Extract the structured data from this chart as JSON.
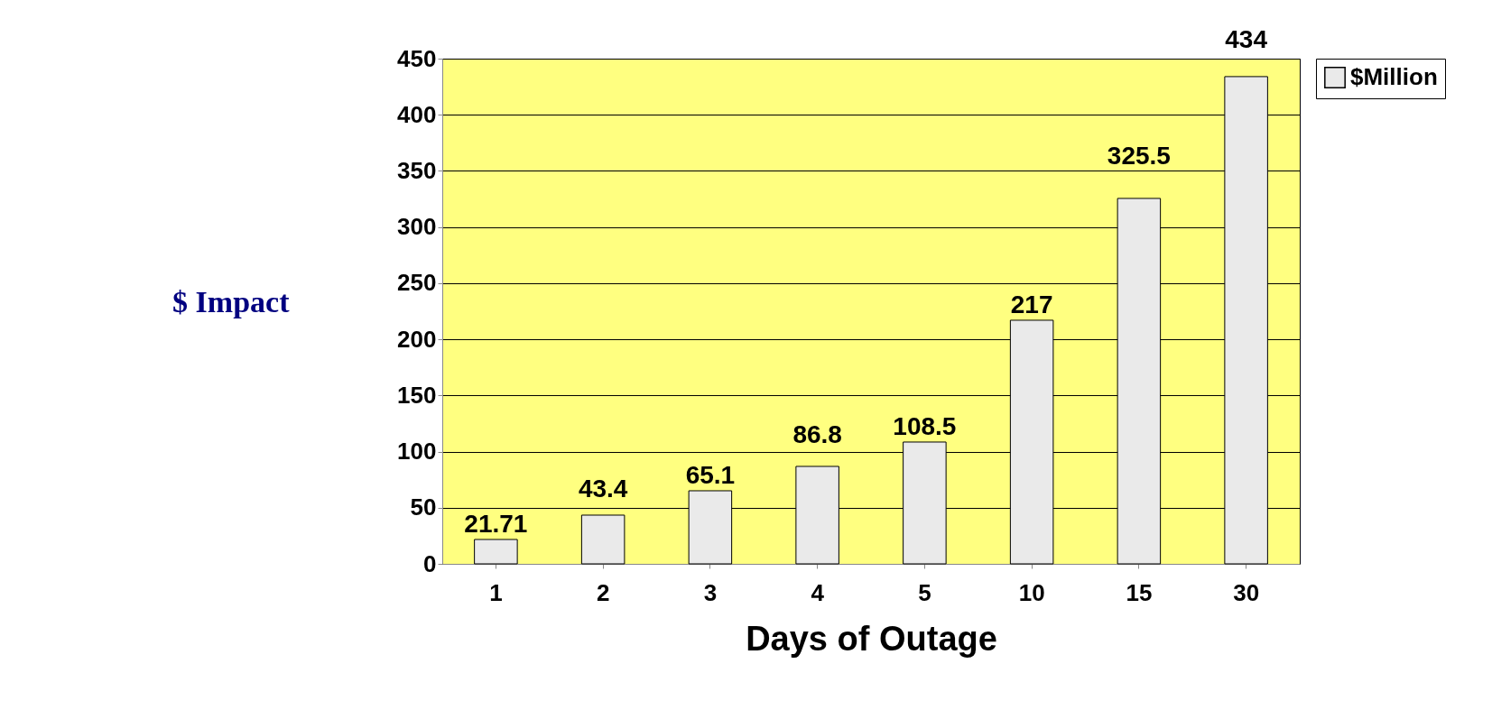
{
  "chart_data": {
    "type": "bar",
    "xlabel": "Days of Outage",
    "ylabel": "$ Impact",
    "categories": [
      "1",
      "2",
      "3",
      "4",
      "5",
      "10",
      "15",
      "30"
    ],
    "series": [
      {
        "name": "$Million",
        "color": "#eaeaea",
        "values": [
          21.71,
          43.4,
          65.1,
          86.8,
          108.5,
          217,
          325.5,
          434
        ]
      }
    ],
    "ylim": [
      0,
      450
    ],
    "yticks": [
      0,
      50,
      100,
      150,
      200,
      250,
      300,
      350,
      400,
      450
    ],
    "grid": "y",
    "legend": "right",
    "data_labels": true
  }
}
